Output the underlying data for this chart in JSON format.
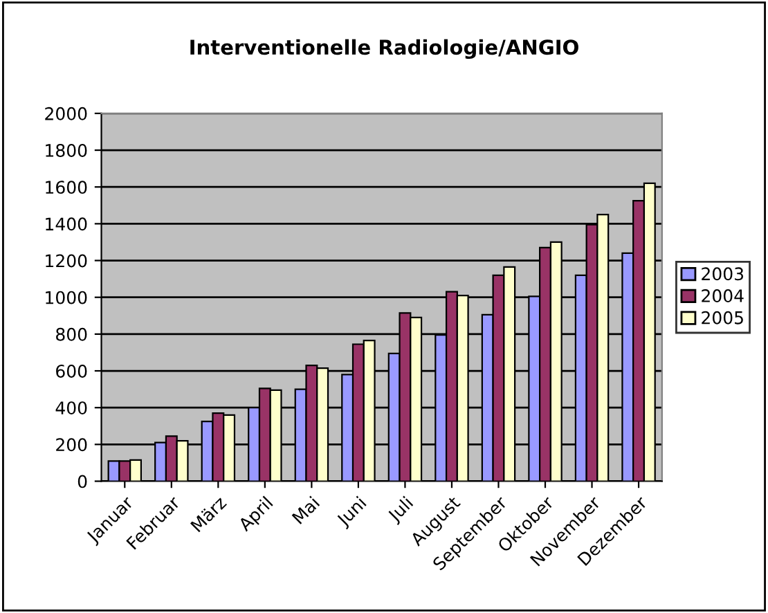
{
  "chart_data": {
    "type": "bar",
    "title": "Interventionelle Radiologie/ANGIO",
    "categories": [
      "Januar",
      "Februar",
      "März",
      "April",
      "Mai",
      "Juni",
      "Juli",
      "August",
      "September",
      "Oktober",
      "November",
      "Dezember"
    ],
    "series": [
      {
        "name": "2003",
        "color": "#9999ff",
        "values": [
          110,
          210,
          325,
          400,
          500,
          580,
          695,
          795,
          905,
          1005,
          1120,
          1240
        ]
      },
      {
        "name": "2004",
        "color": "#993366",
        "values": [
          110,
          245,
          370,
          505,
          630,
          745,
          915,
          1030,
          1120,
          1270,
          1395,
          1525
        ]
      },
      {
        "name": "2005",
        "color": "#ffffcc",
        "values": [
          115,
          220,
          360,
          495,
          615,
          765,
          890,
          1010,
          1165,
          1300,
          1450,
          1620
        ]
      }
    ],
    "ylim": [
      0,
      2000
    ],
    "yticks": [
      0,
      200,
      400,
      600,
      800,
      1000,
      1200,
      1400,
      1600,
      1800,
      2000
    ],
    "grid": "y",
    "legend": "right"
  }
}
